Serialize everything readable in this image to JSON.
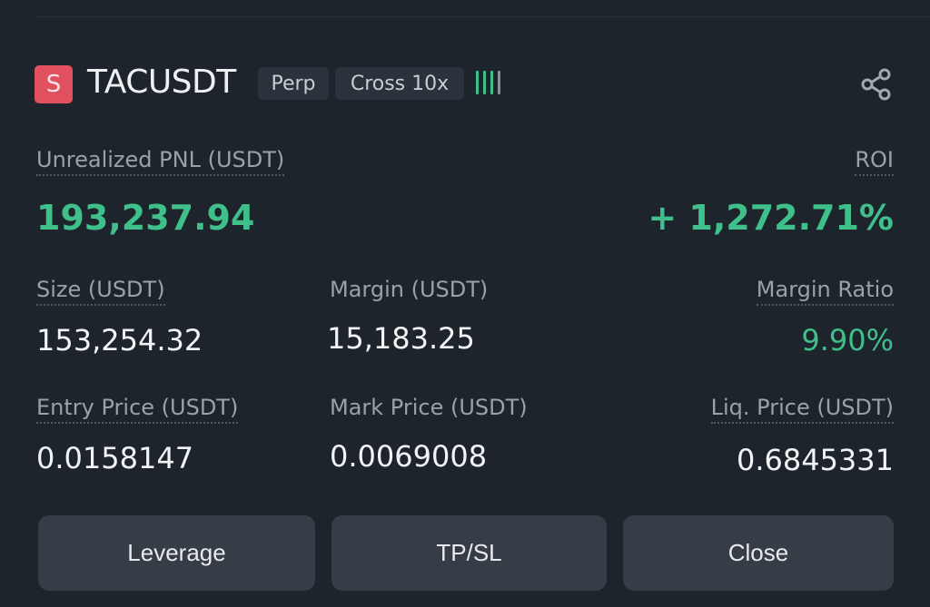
{
  "header": {
    "coin_letter": "S",
    "symbol": "TACUSDT",
    "type_badge": "Perp",
    "margin_badge": "Cross 10x",
    "share_icon": "share-icon"
  },
  "colors": {
    "positive": "#3fbf8a",
    "coin": "#e0505f",
    "background": "#1e242c",
    "button": "#363d46"
  },
  "pnl": {
    "label": "Unrealized PNL (USDT)",
    "value": "193,237.94",
    "roi_label": "ROI",
    "roi_value": "+ 1,272.71%"
  },
  "stats": {
    "size": {
      "label": "Size (USDT)",
      "value": "153,254.32"
    },
    "margin": {
      "label": "Margin (USDT)",
      "value": "15,183.25"
    },
    "margin_ratio": {
      "label": "Margin Ratio",
      "value": "9.90%"
    },
    "entry_price": {
      "label": "Entry Price (USDT)",
      "value": "0.0158147"
    },
    "mark_price": {
      "label": "Mark Price (USDT)",
      "value": "0.0069008"
    },
    "liq_price": {
      "label": "Liq. Price (USDT)",
      "value": "0.6845331"
    }
  },
  "actions": {
    "leverage": "Leverage",
    "tpsl": "TP/SL",
    "close": "Close"
  }
}
